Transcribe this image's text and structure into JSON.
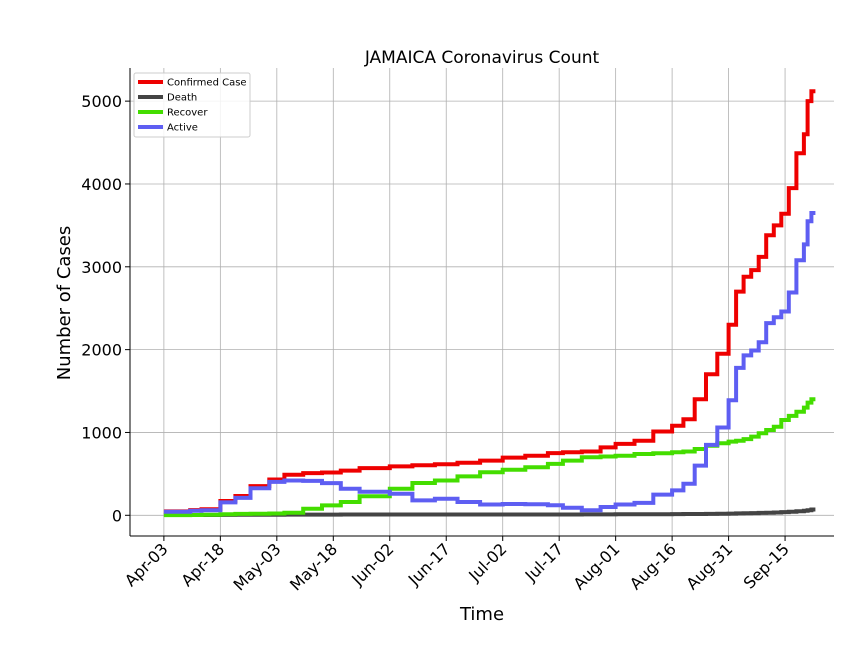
{
  "chart_data": {
    "type": "line",
    "title": "JAMAICA Coronavirus Count",
    "xlabel": "Time",
    "ylabel": "Number of Cases",
    "ylim": [
      -250,
      5400
    ],
    "yticks": [
      0,
      1000,
      2000,
      3000,
      4000,
      5000
    ],
    "xticks": [
      "Apr-03",
      "Apr-18",
      "May-03",
      "May-18",
      "Jun-02",
      "Jun-17",
      "Jul-02",
      "Jul-17",
      "Aug-01",
      "Aug-16",
      "Aug-31",
      "Sep-15"
    ],
    "xlim": [
      "2020-03-25",
      "2020-09-28"
    ],
    "grid": true,
    "legend_position": "top-left",
    "x": [
      "2020-04-03",
      "2020-04-10",
      "2020-04-13",
      "2020-04-18",
      "2020-04-22",
      "2020-04-26",
      "2020-05-01",
      "2020-05-05",
      "2020-05-10",
      "2020-05-15",
      "2020-05-20",
      "2020-05-25",
      "2020-06-02",
      "2020-06-08",
      "2020-06-14",
      "2020-06-20",
      "2020-06-26",
      "2020-07-02",
      "2020-07-08",
      "2020-07-14",
      "2020-07-18",
      "2020-07-23",
      "2020-07-28",
      "2020-08-01",
      "2020-08-06",
      "2020-08-11",
      "2020-08-16",
      "2020-08-19",
      "2020-08-22",
      "2020-08-25",
      "2020-08-28",
      "2020-08-31",
      "2020-09-02",
      "2020-09-04",
      "2020-09-06",
      "2020-09-08",
      "2020-09-10",
      "2020-09-12",
      "2020-09-14",
      "2020-09-16",
      "2020-09-18",
      "2020-09-20",
      "2020-09-21",
      "2020-09-22"
    ],
    "series": [
      {
        "name": "Confirmed Case",
        "color": "#ee0000",
        "values": [
          47,
          63,
          73,
          173,
          233,
          352,
          432,
          490,
          509,
          517,
          540,
          570,
          590,
          604,
          617,
          634,
          660,
          696,
          720,
          751,
          761,
          770,
          820,
          862,
          900,
          1012,
          1080,
          1160,
          1400,
          1703,
          1950,
          2300,
          2700,
          2880,
          2960,
          3120,
          3380,
          3500,
          3640,
          3950,
          4370,
          4600,
          5000,
          5120
        ]
      },
      {
        "name": "Death",
        "color": "#444444",
        "values": [
          3,
          4,
          4,
          5,
          6,
          6,
          7,
          8,
          8,
          8,
          9,
          9,
          10,
          10,
          10,
          10,
          10,
          10,
          10,
          10,
          10,
          11,
          11,
          12,
          12,
          13,
          14,
          15,
          16,
          17,
          19,
          21,
          23,
          25,
          27,
          29,
          31,
          34,
          38,
          42,
          48,
          55,
          62,
          70
        ]
      },
      {
        "name": "Recover",
        "color": "#44dd00",
        "values": [
          2,
          4,
          7,
          12,
          17,
          19,
          22,
          30,
          80,
          120,
          160,
          230,
          320,
          390,
          420,
          470,
          520,
          550,
          580,
          620,
          660,
          700,
          710,
          720,
          740,
          750,
          760,
          770,
          800,
          840,
          870,
          890,
          900,
          920,
          950,
          990,
          1030,
          1070,
          1150,
          1200,
          1250,
          1300,
          1360,
          1400
        ]
      },
      {
        "name": "Active",
        "color": "#5e5ef2",
        "values": [
          42,
          55,
          62,
          156,
          210,
          327,
          403,
          420,
          415,
          389,
          320,
          285,
          260,
          180,
          200,
          160,
          130,
          136,
          133,
          122,
          91,
          60,
          100,
          130,
          150,
          250,
          300,
          380,
          600,
          850,
          1060,
          1390,
          1780,
          1930,
          1990,
          2090,
          2320,
          2390,
          2460,
          2690,
          3080,
          3270,
          3550,
          3650
        ]
      }
    ]
  }
}
